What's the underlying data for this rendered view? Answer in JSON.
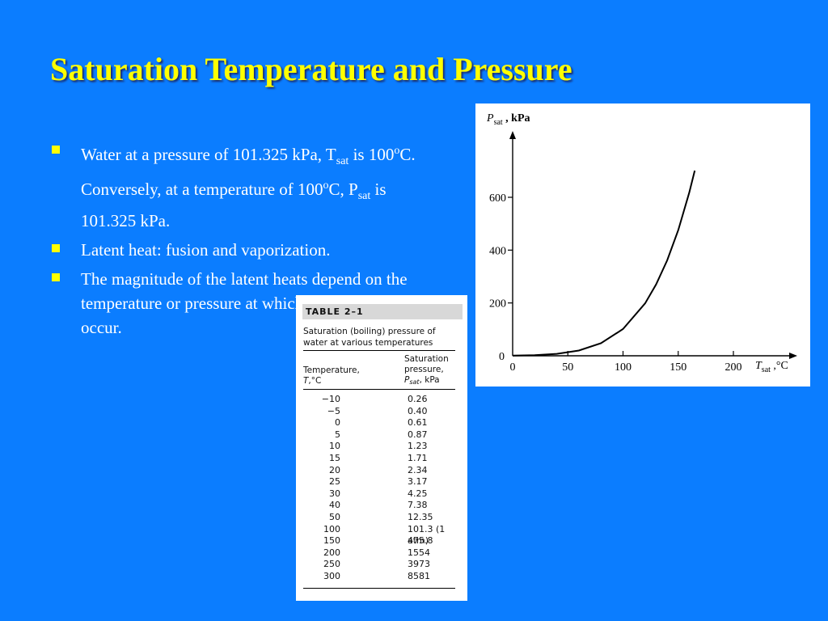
{
  "slide": {
    "title": "Saturation Temperature and Pressure",
    "bullets": [
      {
        "parts": [
          {
            "t": "Water at a pressure of 101.325 kPa, T"
          },
          {
            "t": "sat",
            "sub": true
          },
          {
            "t": " is 100"
          },
          {
            "t": "o",
            "sup": true
          },
          {
            "t": "C. Conversely, at a temperature of 100"
          },
          {
            "t": "o",
            "sup": true
          },
          {
            "t": "C, P"
          },
          {
            "t": "sat",
            "sub": true
          },
          {
            "t": " is 101.325 kPa."
          }
        ]
      },
      {
        "parts": [
          {
            "t": "Latent heat: fusion and vaporization."
          }
        ]
      },
      {
        "parts": [
          {
            "t": "The magnitude of the latent heats depend on the temperature or pressure at which the phase change occur."
          }
        ]
      }
    ],
    "colors": {
      "background": "#0b7dff",
      "title": "#ffff00",
      "text": "#ffffff",
      "bullet": "#ffff00"
    }
  },
  "chart_data": [
    {
      "type": "line",
      "ylabel_main": "P",
      "ylabel_sub": "sat",
      "ylabel_unit": " , kPa",
      "xlabel_main": "T",
      "xlabel_sub": "sat",
      "xlabel_unit": " ,°C",
      "xlim": [
        0,
        200
      ],
      "ylim": [
        0,
        600
      ],
      "xticks": [
        0,
        50,
        100,
        150,
        200
      ],
      "yticks": [
        0,
        200,
        400,
        600
      ],
      "grid": false,
      "series": [
        {
          "x": [
            0,
            20,
            40,
            60,
            80,
            100,
            120,
            130,
            140,
            150,
            160,
            165
          ],
          "values": [
            0.61,
            2.34,
            7.38,
            19.9,
            47.4,
            101.3,
            198.5,
            270.1,
            361.3,
            475.8,
            617.8,
            700.9
          ]
        }
      ]
    },
    {
      "type": "table",
      "label": "TABLE 2–1",
      "caption": "Saturation (boiling) pressure of water at various temperatures",
      "col1_head": "Temperature,",
      "col1_sym": "T",
      "col1_unit": ",°C",
      "col2_head1": "Saturation",
      "col2_head2": "pressure,",
      "col2_sym": "P",
      "col2_sub": "sat",
      "col2_unit": ", kPa",
      "rows": [
        {
          "t": "−10",
          "p": "0.26"
        },
        {
          "t": "−5",
          "p": "0.40"
        },
        {
          "t": "0",
          "p": "0.61"
        },
        {
          "t": "5",
          "p": "0.87"
        },
        {
          "t": "10",
          "p": "1.23"
        },
        {
          "t": "15",
          "p": "1.71"
        },
        {
          "t": "20",
          "p": "2.34"
        },
        {
          "t": "25",
          "p": "3.17"
        },
        {
          "t": "30",
          "p": "4.25"
        },
        {
          "t": "40",
          "p": "7.38"
        },
        {
          "t": "50",
          "p": "12.35"
        },
        {
          "t": "100",
          "p": "101.3 (1 atm)"
        },
        {
          "t": "150",
          "p": "475.8"
        },
        {
          "t": "200",
          "p": "1554"
        },
        {
          "t": "250",
          "p": "3973"
        },
        {
          "t": "300",
          "p": "8581"
        }
      ]
    }
  ]
}
